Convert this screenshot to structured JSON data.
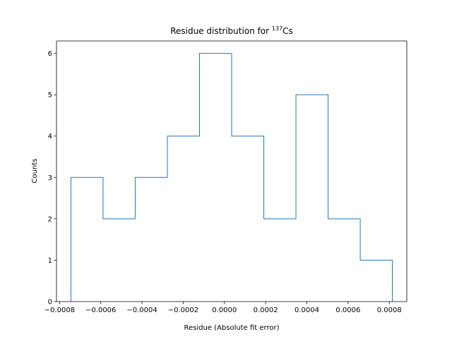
{
  "chart_data": {
    "type": "histogram",
    "title": "Residue distribution for ",
    "title_superscript": "137",
    "title_suffix": "Cs",
    "xlabel": "Residue (Absolute fit error)",
    "ylabel": "Counts",
    "bin_edges": [
      -0.000745,
      -0.000589,
      -0.000433,
      -0.000277,
      -0.000121,
      3.5e-05,
      0.000191,
      0.000347,
      0.000503,
      0.000659,
      0.000815
    ],
    "counts": [
      3,
      2,
      3,
      4,
      6,
      4,
      2,
      5,
      2,
      1
    ],
    "xlim": [
      -0.000815,
      0.000885
    ],
    "ylim": [
      0,
      6.3
    ],
    "xticks": [
      -0.0008,
      -0.0006,
      -0.0004,
      -0.0002,
      0.0,
      0.0002,
      0.0004,
      0.0006,
      0.0008
    ],
    "xtick_labels": [
      "−0.0008",
      "−0.0006",
      "−0.0004",
      "−0.0002",
      "0.0000",
      "0.0002",
      "0.0004",
      "0.0006",
      "0.0008"
    ],
    "yticks": [
      0,
      1,
      2,
      3,
      4,
      5,
      6
    ],
    "ytick_labels": [
      "0",
      "1",
      "2",
      "3",
      "4",
      "5",
      "6"
    ],
    "line_color": "#1f77b4",
    "histtype": "step",
    "grid": false
  }
}
